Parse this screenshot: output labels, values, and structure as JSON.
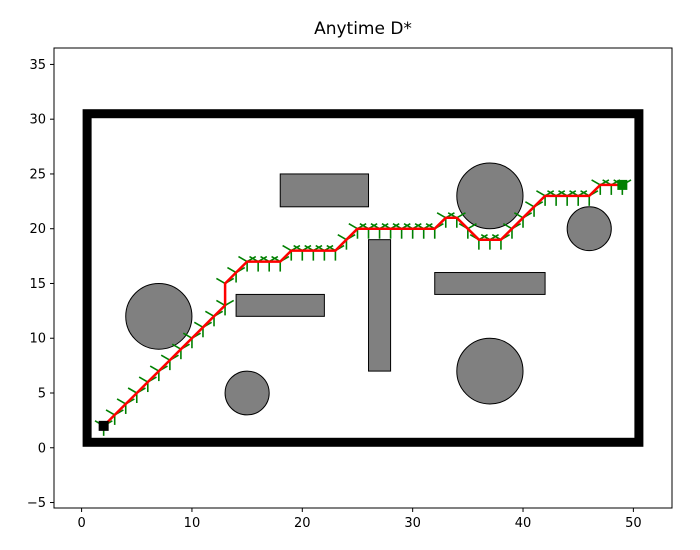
{
  "chart_data": {
    "type": "scatter",
    "title": "Anytime D*",
    "xlabel": "",
    "ylabel": "",
    "xlim": [
      -2.5,
      53.5
    ],
    "ylim": [
      -5.5,
      36.5
    ],
    "xticks": [
      0,
      10,
      20,
      30,
      40,
      50
    ],
    "yticks": [
      -5,
      0,
      5,
      10,
      15,
      20,
      25,
      30,
      35
    ],
    "grid": false,
    "boundary": {
      "x0": 0.5,
      "y0": 0.5,
      "x1": 50.5,
      "y1": 30.5,
      "color": "#000000"
    },
    "obstacles": {
      "color": "#808080",
      "rectangles": [
        {
          "x": 18,
          "y": 22,
          "w": 8,
          "h": 3
        },
        {
          "x": 14,
          "y": 12,
          "w": 8,
          "h": 2
        },
        {
          "x": 26,
          "y": 7,
          "w": 2,
          "h": 12
        },
        {
          "x": 32,
          "y": 14,
          "w": 10,
          "h": 2
        }
      ],
      "circles": [
        {
          "x": 7,
          "y": 12,
          "r": 3
        },
        {
          "x": 15,
          "y": 5,
          "r": 2
        },
        {
          "x": 37,
          "y": 23,
          "r": 3
        },
        {
          "x": 37,
          "y": 7,
          "r": 3
        },
        {
          "x": 46,
          "y": 20,
          "r": 2
        }
      ]
    },
    "start": {
      "x": 2,
      "y": 2,
      "color": "#000000"
    },
    "goal": {
      "x": 49,
      "y": 24,
      "color": "#008000"
    },
    "series": [
      {
        "marker": "tri",
        "color": "#008000",
        "x": [
          2,
          3,
          4,
          5,
          6,
          7,
          8,
          9,
          10,
          11,
          12,
          13,
          13,
          14,
          15,
          16,
          17,
          18,
          19,
          20,
          21,
          22,
          23,
          24,
          25,
          26,
          27,
          28,
          29,
          30,
          31,
          32,
          33,
          34,
          35,
          36,
          37,
          38,
          39,
          40,
          41,
          42,
          43,
          44,
          45,
          46,
          47,
          48,
          49
        ],
        "y": [
          2,
          3,
          4,
          5,
          6,
          7,
          8,
          9,
          10,
          11,
          12,
          13,
          15,
          16,
          17,
          17,
          17,
          17,
          18,
          18,
          18,
          18,
          18,
          19,
          20,
          20,
          20,
          20,
          20,
          20,
          20,
          20,
          21,
          21,
          20,
          19,
          19,
          19,
          20,
          21,
          22,
          23,
          23,
          23,
          23,
          23,
          24,
          24,
          24
        ]
      },
      {
        "marker": "line",
        "color": "#ff0000",
        "x": [
          2,
          3,
          4,
          5,
          6,
          7,
          8,
          9,
          10,
          11,
          12,
          13,
          13,
          14,
          15,
          16,
          17,
          18,
          19,
          20,
          21,
          22,
          23,
          24,
          25,
          26,
          27,
          28,
          29,
          30,
          31,
          32,
          33,
          34,
          35,
          36,
          37,
          38,
          39,
          40,
          41,
          42,
          43,
          44,
          45,
          46,
          47,
          48,
          49
        ],
        "y": [
          2,
          3,
          4,
          5,
          6,
          7,
          8,
          9,
          10,
          11,
          12,
          13,
          15,
          16,
          17,
          17,
          17,
          17,
          18,
          18,
          18,
          18,
          18,
          19,
          20,
          20,
          20,
          20,
          20,
          20,
          20,
          20,
          21,
          21,
          20,
          19,
          19,
          19,
          20,
          21,
          22,
          23,
          23,
          23,
          23,
          23,
          24,
          24,
          24
        ]
      }
    ]
  }
}
